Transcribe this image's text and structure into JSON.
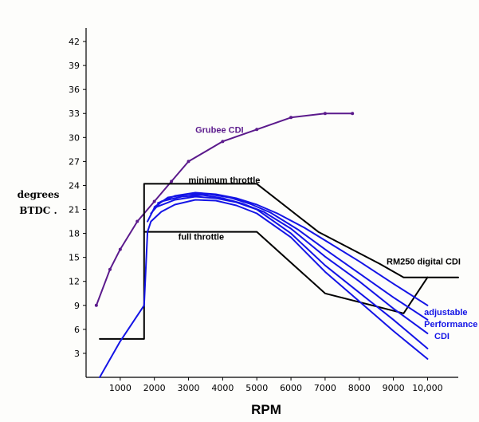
{
  "chart_data": {
    "type": "line",
    "xlabel": "RPM",
    "ylabel": [
      "degrees",
      "BTDC ."
    ],
    "xlim": [
      0,
      10900
    ],
    "ylim": [
      0,
      43.5
    ],
    "yticks": [
      3,
      6,
      9,
      12,
      15,
      18,
      21,
      24,
      27,
      30,
      33,
      36,
      39,
      42
    ],
    "xticks": [
      {
        "value": 1000,
        "label": "1000"
      },
      {
        "value": 2000,
        "label": "2000"
      },
      {
        "value": 3000,
        "label": "3000"
      },
      {
        "value": 4000,
        "label": "4000"
      },
      {
        "value": 5000,
        "label": "5000"
      },
      {
        "value": 6000,
        "label": "6000"
      },
      {
        "value": 7000,
        "label": "7000"
      },
      {
        "value": 8000,
        "label": "8000"
      },
      {
        "value": 9000,
        "label": "9000"
      },
      {
        "value": 10000,
        "label": "10,000"
      }
    ],
    "grid": false,
    "colors": {
      "grubee": "#5b1a8c",
      "stock": "#000000",
      "adjustable": "#1414e6"
    },
    "annotations": [
      {
        "text": "Grubee CDI",
        "x": 3200,
        "y": 30.6,
        "color": "#5b1a8c"
      },
      {
        "text": "minimum throttle",
        "x": 3000,
        "y": 24.3,
        "color": "#000000"
      },
      {
        "text": "full throttle",
        "x": 2700,
        "y": 17.2,
        "color": "#000000"
      },
      {
        "text": "RM250 digital CDI",
        "x": 8800,
        "y": 14.1,
        "color": "#000000"
      },
      {
        "text": "adjustable",
        "x": 9900,
        "y": 7.8,
        "color": "#1414e6"
      },
      {
        "text": "Performance",
        "x": 9900,
        "y": 6.3,
        "color": "#1414e6"
      },
      {
        "text": "CDI",
        "x": 10200,
        "y": 4.8,
        "color": "#1414e6"
      }
    ],
    "series": [
      {
        "style": "grubee",
        "x": [
          300,
          700,
          1000,
          1500,
          2000,
          2500,
          3000,
          4000,
          5000,
          6000,
          7000,
          7800
        ],
        "y": [
          9,
          13.5,
          16,
          19.5,
          22,
          24.5,
          27,
          29.5,
          31,
          32.5,
          33,
          33
        ]
      },
      {
        "style": "stock",
        "x": [
          400,
          1700,
          1700,
          5000,
          6800,
          8600,
          9300,
          10900
        ],
        "y": [
          4.8,
          4.8,
          24.2,
          24.2,
          18.2,
          14.2,
          12.5,
          12.5
        ]
      },
      {
        "style": "stock",
        "x": [
          1700,
          5000,
          7000,
          9300,
          10000
        ],
        "y": [
          18.2,
          18.2,
          10.5,
          8,
          12.5
        ]
      },
      {
        "style": "adjustable",
        "x": [
          400,
          1000,
          1700,
          1800,
          1900,
          2200,
          2600,
          3200,
          3800,
          4400,
          5000,
          6000,
          7000,
          8000,
          9000,
          10000
        ],
        "y": [
          0,
          4.5,
          9,
          18.2,
          19.5,
          20.7,
          21.6,
          22.2,
          22.1,
          21.5,
          20.5,
          17.5,
          13.2,
          9.5,
          5.8,
          2.3
        ]
      },
      {
        "style": "adjustable",
        "x": [
          1800,
          2000,
          2600,
          3200,
          3800,
          4400,
          5000,
          6000,
          7000,
          8000,
          9000,
          10000
        ],
        "y": [
          19.5,
          21.2,
          22.2,
          22.6,
          22.4,
          21.9,
          21,
          18,
          14,
          10.6,
          7.2,
          3.6
        ]
      },
      {
        "style": "adjustable",
        "x": [
          1900,
          2200,
          2800,
          3400,
          4000,
          4600,
          5200,
          6000,
          7000,
          8000,
          9000,
          10000
        ],
        "y": [
          20.5,
          22,
          22.6,
          22.8,
          22.4,
          21.7,
          20.7,
          18.6,
          15.1,
          12,
          8.6,
          5.5
        ]
      },
      {
        "style": "adjustable",
        "x": [
          2000,
          2400,
          3000,
          3600,
          4200,
          4800,
          5400,
          6200,
          7000,
          8000,
          9000,
          10000
        ],
        "y": [
          21.3,
          22.5,
          22.9,
          22.9,
          22.5,
          21.7,
          20.6,
          18.5,
          16,
          13,
          10,
          7.2
        ]
      },
      {
        "style": "adjustable",
        "x": [
          2100,
          2600,
          3200,
          3800,
          4400,
          5000,
          5600,
          6400,
          7200,
          8000,
          9000,
          10000
        ],
        "y": [
          21.8,
          22.7,
          23.1,
          22.9,
          22.4,
          21.6,
          20.5,
          18.7,
          16.6,
          14.5,
          11.7,
          9
        ]
      }
    ]
  }
}
